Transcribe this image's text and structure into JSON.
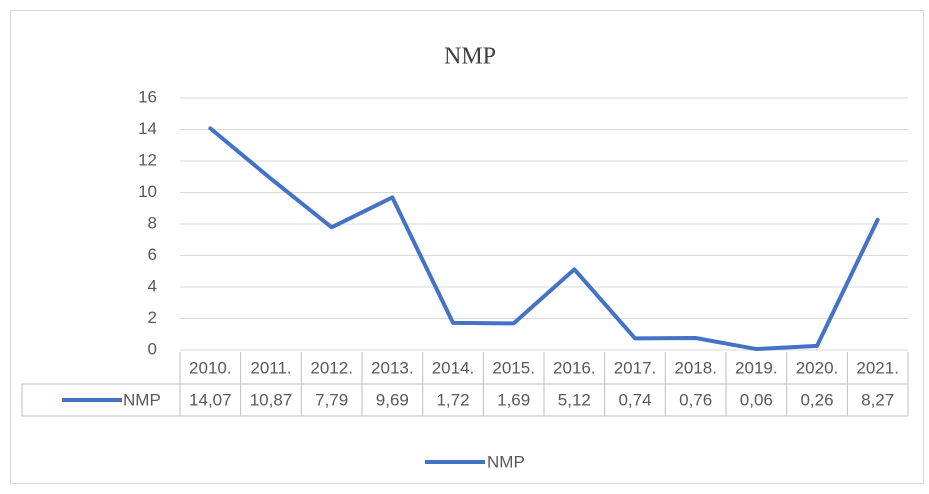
{
  "chart_data": {
    "type": "line",
    "title": "NMP",
    "categories": [
      "2010.",
      "2011.",
      "2012.",
      "2013.",
      "2014.",
      "2015.",
      "2016.",
      "2017.",
      "2018.",
      "2019.",
      "2020.",
      "2021."
    ],
    "series": [
      {
        "name": "NMP",
        "color": "#4472c4",
        "values": [
          14.07,
          10.87,
          7.79,
          9.69,
          1.72,
          1.69,
          5.12,
          0.74,
          0.76,
          0.06,
          0.26,
          8.27
        ],
        "value_labels": [
          "14,07",
          "10,87",
          "7,79",
          "9,69",
          "1,72",
          "1,69",
          "5,12",
          "0,74",
          "0,76",
          "0,06",
          "0,26",
          "8,27"
        ]
      }
    ],
    "ylim": [
      0,
      16
    ],
    "yticks": [
      0,
      2,
      4,
      6,
      8,
      10,
      12,
      14,
      16
    ],
    "grid": true,
    "legend": "bottom"
  }
}
